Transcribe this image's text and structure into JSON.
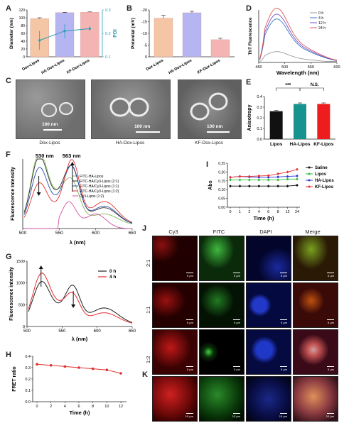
{
  "panels": {
    "A": {
      "label": "A"
    },
    "B": {
      "label": "B"
    },
    "C": {
      "label": "C"
    },
    "D": {
      "label": "D"
    },
    "E": {
      "label": "E"
    },
    "F": {
      "label": "F"
    },
    "G": {
      "label": "G"
    },
    "H": {
      "label": "H"
    },
    "I": {
      "label": "I"
    },
    "J": {
      "label": "J"
    },
    "K": {
      "label": "K"
    }
  },
  "panel_c": {
    "captions": [
      "Dox-Lipos",
      "HA-Dox-Lipos",
      "KF-Dox-Lipos"
    ],
    "scalebars": [
      "100 nm",
      "100 nm",
      "100 nm"
    ]
  },
  "panel_j": {
    "columns": [
      "Cy3",
      "FITC",
      "DAPI",
      "Merge"
    ],
    "rows": [
      "2:1",
      "1:1",
      "1:2"
    ],
    "scale": "5 μm",
    "scale_k": "10 μm"
  },
  "chart_data": [
    {
      "panel": "A",
      "type": "bar",
      "categories": [
        "Dox-Lipos",
        "HA-Dox-Lipos",
        "KF-Dox-Lipos"
      ],
      "series": [
        {
          "name": "Diameter",
          "values": [
            98,
            113,
            114
          ],
          "errors": [
            2,
            1,
            1
          ]
        },
        {
          "name": "PDI",
          "values": [
            0.17,
            0.21,
            0.22
          ],
          "errors": [
            0.04,
            0.03,
            0.01
          ]
        }
      ],
      "ylabel": "Diameter (nm)",
      "ylabel2": "PDI",
      "ylim": [
        0,
        120
      ],
      "ylim2": [
        0.1,
        0.3
      ],
      "yticks": [
        "0",
        "20",
        "40",
        "60",
        "80",
        "100",
        "120"
      ],
      "yticks2": [
        "0.1",
        "0.2",
        "0.3"
      ],
      "colors": [
        "#f5c6a5",
        "#b5b5f2",
        "#f5b4b4"
      ],
      "pdi_color": "#2a9db5"
    },
    {
      "panel": "B",
      "type": "bar",
      "categories": [
        "Dox-Lipos",
        "HA-Dox-Lipos",
        "KF-Dox-Lipos"
      ],
      "values": [
        -16.5,
        -18.8,
        -7.3
      ],
      "errors": [
        1.2,
        0.6,
        0.6
      ],
      "ylabel": "Potential (mV)",
      "ylim": [
        0,
        -20
      ],
      "yticks": [
        "0",
        "-5",
        "-10",
        "-15",
        "-20"
      ],
      "colors": [
        "#f5c6a5",
        "#b5b5f2",
        "#f5b4b4"
      ]
    },
    {
      "panel": "D",
      "type": "line",
      "xlabel": "Wavelength (nm)",
      "ylabel": "ThT Fluorescence",
      "xlim": [
        450,
        600
      ],
      "xticks": [
        "450",
        "500",
        "550",
        "600"
      ],
      "series": [
        {
          "name": "0 h",
          "color": "#9a9a9a",
          "peak": 0.18
        },
        {
          "name": "4 h",
          "color": "#3a7ac2",
          "peak": 0.72
        },
        {
          "name": "12 h",
          "color": "#7a50c8",
          "peak": 0.8
        },
        {
          "name": "24 h",
          "color": "#e05a5a",
          "peak": 0.9
        }
      ]
    },
    {
      "panel": "E",
      "type": "bar",
      "categories": [
        "Lipos",
        "HA-Lipos",
        "KF-Lipos"
      ],
      "values": [
        0.262,
        0.33,
        0.33
      ],
      "errors": [
        0.008,
        0.01,
        0.01
      ],
      "ylabel": "Anisotropy",
      "ylim": [
        0,
        0.4
      ],
      "yticks": [
        "0.0",
        "0.1",
        "0.2",
        "0.3",
        "0.4"
      ],
      "colors": [
        "#111111",
        "#16928f",
        "#ee1c1c"
      ],
      "annotations": [
        "***",
        "N.S."
      ]
    },
    {
      "panel": "F",
      "type": "line",
      "xlabel": "λ (nm)",
      "ylabel": "Fluorescence Intensity",
      "xlim": [
        500,
        650
      ],
      "xticks": [
        "500",
        "550",
        "600",
        "650"
      ],
      "annotations": [
        "530 nm",
        "563 nm"
      ],
      "series": [
        {
          "name": "FITC-HA-Lipos",
          "color": "#88b860",
          "peak1": 0.95,
          "peak2": 0.35
        },
        {
          "name": "FITC-HA/Cy3-Lipos (2:1)",
          "color": "#333333",
          "peak1": 0.9,
          "peak2": 0.55
        },
        {
          "name": "FITC-HA/Cy3-Lipos (1:1)",
          "color": "#2a4fa8",
          "peak1": 0.75,
          "peak2": 0.6
        },
        {
          "name": "FITC-HA/Cy3-Lipos (1:2)",
          "color": "#e03030",
          "peak1": 0.55,
          "peak2": 0.75
        },
        {
          "name": "Cy3-Lipos (1:2)",
          "color": "#d050a0",
          "peak1": 0.0,
          "peak2": 0.38
        }
      ]
    },
    {
      "panel": "G",
      "type": "line",
      "xlabel": "λ (nm)",
      "ylabel": "Fluorescence intensity",
      "xlim": [
        500,
        650
      ],
      "ylim": [
        0,
        1500
      ],
      "xticks": [
        "500",
        "550",
        "600",
        "650"
      ],
      "yticks": [
        "0",
        "500",
        "1000",
        "1500"
      ],
      "series": [
        {
          "name": "0 h",
          "color": "#222222",
          "peak1": 920,
          "peak2": 700
        },
        {
          "name": "4 h",
          "color": "#e03030",
          "peak1": 1100,
          "peak2": 500
        }
      ]
    },
    {
      "panel": "H",
      "type": "line",
      "xlabel": "Time (h)",
      "ylabel": "FRET ratio",
      "ylim": [
        0.0,
        0.4
      ],
      "yticks": [
        "0.0",
        "0.1",
        "0.2",
        "0.3",
        "0.4"
      ],
      "categories": [
        "0",
        "2",
        "4",
        "6",
        "8",
        "10",
        "12"
      ],
      "x": [
        0,
        2,
        4,
        6,
        8,
        10,
        12
      ],
      "values": [
        0.33,
        0.32,
        0.31,
        0.3,
        0.29,
        0.28,
        0.25
      ],
      "color": "#e03030"
    },
    {
      "panel": "I",
      "type": "line",
      "xlabel": "Time (h)",
      "ylabel": "Abs",
      "ylim": [
        0.0,
        0.25
      ],
      "yticks": [
        "0.00",
        "0.05",
        "0.10",
        "0.15",
        "0.20",
        "0.25"
      ],
      "categories": [
        "0",
        "1",
        "2",
        "4",
        "6",
        "8",
        "12",
        "24"
      ],
      "series": [
        {
          "name": "Saline",
          "color": "#111111",
          "values": [
            0.12,
            0.12,
            0.12,
            0.12,
            0.12,
            0.12,
            0.12,
            0.125
          ]
        },
        {
          "name": "Lipos",
          "color": "#2ec23a",
          "values": [
            0.155,
            0.155,
            0.155,
            0.155,
            0.155,
            0.155,
            0.16,
            0.16
          ]
        },
        {
          "name": "HA-Lipos",
          "color": "#2a3ad8",
          "values": [
            0.17,
            0.175,
            0.172,
            0.17,
            0.17,
            0.172,
            0.175,
            0.178
          ]
        },
        {
          "name": "KF-Lipos",
          "color": "#e83030",
          "values": [
            0.17,
            0.175,
            0.175,
            0.178,
            0.18,
            0.19,
            0.2,
            0.215
          ]
        }
      ]
    }
  ]
}
